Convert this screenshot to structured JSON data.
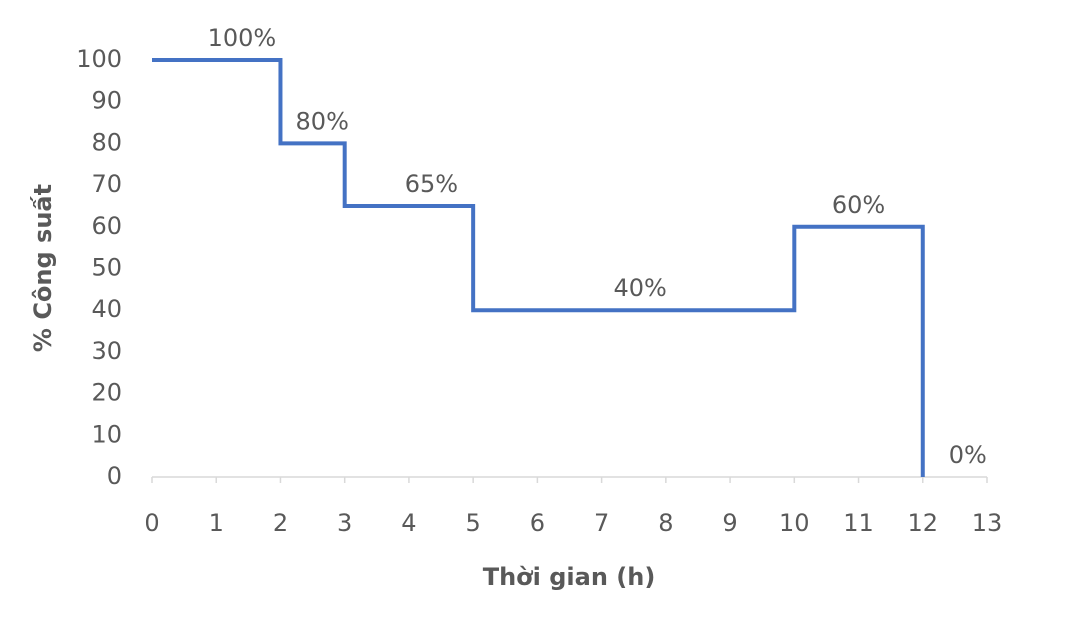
{
  "chart_data": {
    "type": "line",
    "x_label": "Thời gian (h)",
    "y_label": "% Công suất",
    "x": [
      0,
      2,
      2,
      3,
      3,
      5,
      5,
      10,
      10,
      12,
      12
    ],
    "series": [
      {
        "color": "#4472c4",
        "values": [
          100,
          100,
          80,
          80,
          65,
          65,
          40,
          40,
          60,
          60,
          0
        ]
      }
    ],
    "annotations": [
      {
        "text": "100%",
        "x": 1.4,
        "y": 100
      },
      {
        "text": "80%",
        "x": 2.65,
        "y": 80
      },
      {
        "text": "65%",
        "x": 4.35,
        "y": 65
      },
      {
        "text": "40%",
        "x": 7.6,
        "y": 40
      },
      {
        "text": "60%",
        "x": 11,
        "y": 60
      },
      {
        "text": "0%",
        "x": 12.7,
        "y": 0
      }
    ],
    "xlim": [
      0,
      13
    ],
    "xticks": [
      0,
      1,
      2,
      3,
      4,
      5,
      6,
      7,
      8,
      9,
      10,
      11,
      12,
      13
    ],
    "ylim": [
      0,
      100
    ],
    "yticks": [
      0,
      10,
      20,
      30,
      40,
      50,
      60,
      70,
      80,
      90,
      100
    ],
    "grid": false
  }
}
